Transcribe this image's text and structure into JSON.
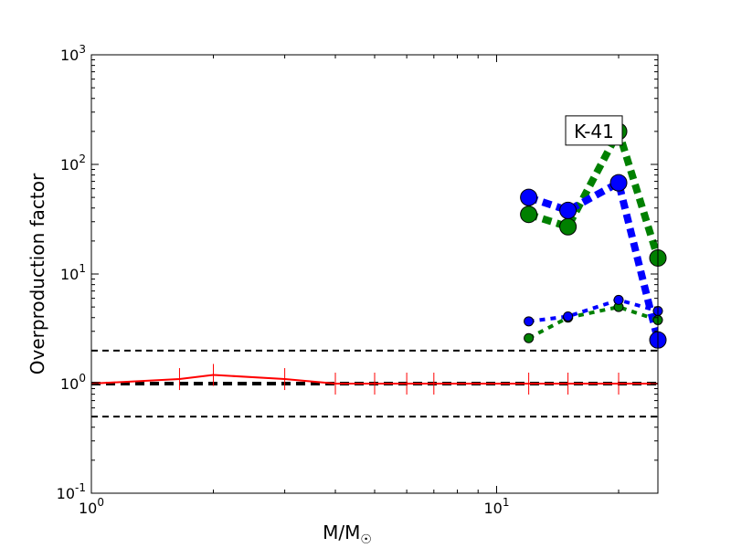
{
  "chart_data": {
    "type": "line",
    "xscale": "log",
    "yscale": "log",
    "xlim": [
      1,
      25
    ],
    "ylim": [
      0.1,
      1000
    ],
    "xlabel": "M/M☉",
    "ylabel": "Overproduction factor",
    "grid": false,
    "x_ticks": [
      {
        "value": 1,
        "mantissa": "10",
        "exp": "0"
      },
      {
        "value": 10,
        "mantissa": "10",
        "exp": "1"
      }
    ],
    "y_ticks": [
      {
        "value": 0.1,
        "mantissa": "10",
        "exp": "-1"
      },
      {
        "value": 1,
        "mantissa": "10",
        "exp": "0"
      },
      {
        "value": 10,
        "mantissa": "10",
        "exp": "1"
      },
      {
        "value": 100,
        "mantissa": "10",
        "exp": "2"
      },
      {
        "value": 1000,
        "mantissa": "10",
        "exp": "3"
      }
    ],
    "annotation": {
      "text": "K-41",
      "x": 20,
      "y": 200
    },
    "reference_lines": [
      {
        "y": 2,
        "color": "#000000",
        "style": "dashed"
      },
      {
        "y": 1,
        "color": "#000000",
        "style": "dashed-thick"
      },
      {
        "y": 0.5,
        "color": "#000000",
        "style": "dashed"
      }
    ],
    "series": [
      {
        "color": "#ff0000",
        "style": "solid",
        "marker": "vline",
        "x": [
          1,
          1.65,
          2,
          3,
          4,
          5,
          6,
          7,
          12,
          15,
          20,
          25
        ],
        "y": [
          1,
          1.1,
          1.2,
          1.1,
          1.0,
          1.0,
          1.0,
          1.0,
          1.0,
          1.0,
          1.0,
          1.0
        ]
      },
      {
        "color": "#008000",
        "style": "dotted-thick",
        "marker": "circle-large",
        "x": [
          12,
          15,
          20,
          25
        ],
        "y": [
          35,
          27,
          200,
          14
        ]
      },
      {
        "color": "#0000ff",
        "style": "dotted-thick",
        "marker": "circle-large",
        "x": [
          12,
          15,
          20,
          25
        ],
        "y": [
          50,
          38,
          68,
          2.5
        ]
      },
      {
        "color": "#008000",
        "style": "dotted",
        "marker": "circle-small",
        "x": [
          12,
          15,
          20,
          25
        ],
        "y": [
          2.6,
          4.0,
          5.0,
          3.8
        ]
      },
      {
        "color": "#0000ff",
        "style": "dotted",
        "marker": "circle-small",
        "x": [
          12,
          15,
          20,
          25
        ],
        "y": [
          3.7,
          4.1,
          5.8,
          4.6
        ]
      }
    ]
  }
}
